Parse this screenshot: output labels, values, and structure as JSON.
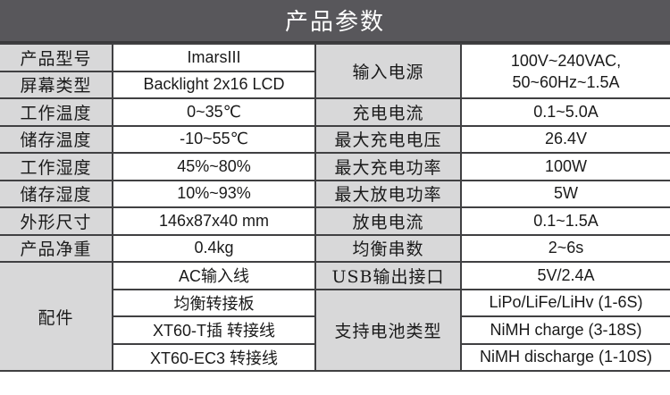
{
  "title": "产品参数",
  "rows": [
    {
      "l1": "产品型号",
      "v1": "ImarsIII",
      "l2": "输入电源",
      "v2a": "100V~240VAC,",
      "v2b": "50~60Hz~1.5A"
    },
    {
      "l1": "屏幕类型",
      "v1": "Backlight 2x16 LCD"
    },
    {
      "l1": "工作温度",
      "v1": "0~35℃",
      "l2": "充电电流",
      "v2": "0.1~5.0A"
    },
    {
      "l1": "储存温度",
      "v1": "-10~55℃",
      "l2": "最大充电电压",
      "v2": "26.4V"
    },
    {
      "l1": "工作湿度",
      "v1": "45%~80%",
      "l2": "最大充电功率",
      "v2": "100W"
    },
    {
      "l1": "储存湿度",
      "v1": "10%~93%",
      "l2": "最大放电功率",
      "v2": "5W"
    },
    {
      "l1": "外形尺寸",
      "v1": "146x87x40 mm",
      "l2": "放电电流",
      "v2": "0.1~1.5A"
    },
    {
      "l1": "产品净重",
      "v1": "0.4kg",
      "l2": "均衡串数",
      "v2": "2~6s"
    }
  ],
  "accessories": {
    "label": "配件",
    "items": [
      "AC输入线",
      "均衡转接板",
      "XT60-T插 转接线",
      "XT60-EC3 转接线"
    ]
  },
  "usb": {
    "label": "USB输出接口",
    "value": "5V/2.4A"
  },
  "battery": {
    "label": "支持电池类型",
    "types": [
      "LiPo/LiFe/LiHv (1-6S)",
      "NiMH charge (3-18S)",
      "NiMH discharge (1-10S)"
    ]
  }
}
